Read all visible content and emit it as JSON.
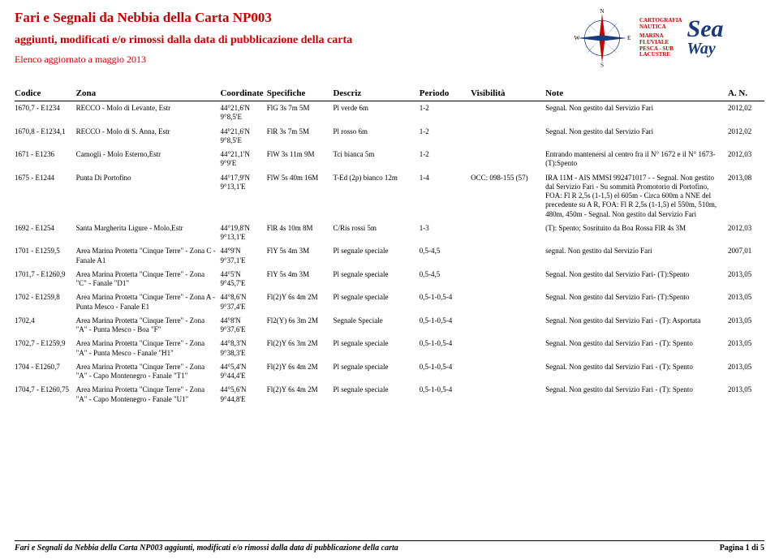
{
  "header": {
    "title": "Fari e Segnali da Nebbia della Carta NP003",
    "subtitle": "aggiunti, modificati e/o rimossi dalla data di pubblicazione della carta",
    "updated": "Elenco aggiornato a maggio 2013"
  },
  "logo": {
    "brand_top": "Sea",
    "brand_bottom": "Way",
    "red_lines": [
      "CARTOGRAFIA",
      "NAUTICA",
      "MARINA",
      "FLUVIALE",
      "PESCA - SUB",
      "LACUSTRE"
    ],
    "compass_labels": {
      "n": "N",
      "s": "S",
      "e": "E",
      "w": "W"
    }
  },
  "columns": {
    "codice": "Codice",
    "zona": "Zona",
    "coordinate": "Coordinate",
    "specifiche": "Specifiche",
    "descriz": "Descriz",
    "periodo": "Periodo",
    "visibilita": "Visibilità",
    "note": "Note",
    "an": "A. N."
  },
  "rows": [
    {
      "codice": "1670,7 - E1234",
      "zona": "RECCO - Molo di Levante, Estr",
      "coord": "44°21,6'N 9°8,5'E",
      "spec": "FlG 3s 7m 5M",
      "descriz": "Pl verde 6m",
      "periodo": "1-2",
      "vis": "",
      "note": "Segnal. Non gestito dal Servizio Fari",
      "an": "2012,02"
    },
    {
      "codice": "1670,8 - E1234,1",
      "zona": "RECCO - Molo di S. Anna, Estr",
      "coord": "44°21,6'N 9°8,5'E",
      "spec": "FlR 3s 7m 5M",
      "descriz": "Pl rosso 6m",
      "periodo": "1-2",
      "vis": "",
      "note": "Segnal. Non gestito dal Servizio Fari",
      "an": "2012,02"
    },
    {
      "codice": "1671 - E1236",
      "zona": "Camogli - Molo Esterno,Estr",
      "coord": "44°21,1'N 9°9'E",
      "spec": "FlW 3s 11m 9M",
      "descriz": "Tci bianca 5m",
      "periodo": "1-2",
      "vis": "",
      "note": "Entrando mantenersi al centro fra il N° 1672 e il N° 1673-(T):Spento",
      "an": "2012,03"
    },
    {
      "codice": "1675 - E1244",
      "zona": "Punta Di Portofino",
      "coord": "44°17,9'N 9°13,1'E",
      "spec": "FlW 5s 40m 16M",
      "descriz": "T-Ed (2p) bianco 12m",
      "periodo": "1-4",
      "vis": "OCC: 098-155 (57)",
      "note": "IRA 11M - AIS MMSI 992471017 - - Segnal. Non gestito dal Servizio Fari - Su sommità Promotorio di Portofino, FOA: Fl R 2,5s (1-1,5) el 605m - Circa 600m a NNE del precedente su A R, FOA: Fl R 2,5s (1-1,5) el 550m, 510m, 480m, 450m - Segnal. Non gestito dal Servizio Fari",
      "an": "2013,08"
    },
    {
      "codice": "1692 - E1254",
      "zona": "Santa Margherita Ligure - Molo,Estr",
      "coord": "44°19,8'N 9°13,1'E",
      "spec": "FlR 4s 10m 8M",
      "descriz": "C/Ris rossi 5m",
      "periodo": "1-3",
      "vis": "",
      "note": "(T): Spento; Sosrituito da Boa Rossa FlR 4s 3M",
      "an": "2012,03"
    },
    {
      "codice": "1701 - E1259,5",
      "zona": "Area Marina Protetta \"Cinque Terre\" - Zona C - Fanale A1",
      "coord": "44°9'N 9°37,1'E",
      "spec": "FlY 5s 4m 3M",
      "descriz": "Pl segnale speciale",
      "periodo": "0,5-4,5",
      "vis": "",
      "note": "segnal. Non gestito dal Servizio Fari",
      "an": "2007,01"
    },
    {
      "codice": "1701,7 - E1260,9",
      "zona": "Area Marina Protetta \"Cinque Terre\" - Zona \"C\" - Fanale \"D1\"",
      "coord": "44°5'N 9°45,7'E",
      "spec": "FlY 5s 4m 3M",
      "descriz": "Pl segnale speciale",
      "periodo": "0,5-4,5",
      "vis": "",
      "note": "Segnal. Non gestito dal Servizio Fari- (T):Spento",
      "an": "2013,05"
    },
    {
      "codice": "1702 - E1259,8",
      "zona": "Area Marina Protetta \"Cinque Terre\" - Zona A - Punta Mesco - Fanale E1",
      "coord": "44°8,6'N 9°37,4'E",
      "spec": "Fl(2)Y 6s 4m 2M",
      "descriz": "Pl segnale speciale",
      "periodo": "0,5-1-0,5-4",
      "vis": "",
      "note": "Segnal. Non gestito dal Servizio Fari- (T):Spento",
      "an": "2013,05"
    },
    {
      "codice": "1702,4",
      "zona": "Area Marina Protetta \"Cinque Terre\" - Zona \"A\" - Punta Mesco - Boa \"F\"",
      "coord": "44°8'N 9°37,6'E",
      "spec": "Fl2(Y) 6s 3m 2M",
      "descriz": "Segnale Speciale",
      "periodo": "0,5-1-0,5-4",
      "vis": "",
      "note": "Segnal. Non gestito dal Servizio Fari - (T): Asportata",
      "an": "2013,05"
    },
    {
      "codice": "1702,7 - E1259,9",
      "zona": "Area Marina Protetta \"Cinque Terre\" - Zona \"A\" - Punta Mesco - Fanale \"H1\"",
      "coord": "44°8,3'N 9°38,3'E",
      "spec": "Fl(2)Y 6s 3m 2M",
      "descriz": "Pl segnale speciale",
      "periodo": "0,5-1-0,5-4",
      "vis": "",
      "note": "Segnal. Non gestito dal Servizio Fari - (T): Spento",
      "an": "2013,05"
    },
    {
      "codice": "1704 - E1260,7",
      "zona": "Area Marina Protetta \"Cinque Terre\" - Zona \"A\" - Capo Montenegro - Fanale \"T1\"",
      "coord": "44°5,4'N 9°44,4'E",
      "spec": "Fl(2)Y 6s 4m 2M",
      "descriz": "Pl segnale speciale",
      "periodo": "0,5-1-0,5-4",
      "vis": "",
      "note": "Segnal. Non gestito dal Servizio Fari - (T): Spento",
      "an": "2013,05"
    },
    {
      "codice": "1704,7 - E1260,75",
      "zona": "Area Marina Protetta \"Cinque Terre\" - Zona \"A\" - Capo Montenegro - Fanale \"U1\"",
      "coord": "44°5,6'N 9°44,8'E",
      "spec": "Fl(2)Y 6s 4m 2M",
      "descriz": "Pl segnale speciale",
      "periodo": "0,5-1-0,5-4",
      "vis": "",
      "note": "Segnal. Non gestito dal Servizio Fari - (T): Spento",
      "an": "2013,05"
    }
  ],
  "footer": {
    "left": "Fari e Segnali da Nebbia della Carta NP003 aggiunti, modificati e/o rimossi dalla data di pubblicazione della carta",
    "right": "Pagina 1 di 5"
  },
  "colors": {
    "title": "#cc0000",
    "brand": "#1a3a7a",
    "text": "#000000",
    "bg": "#ffffff"
  }
}
